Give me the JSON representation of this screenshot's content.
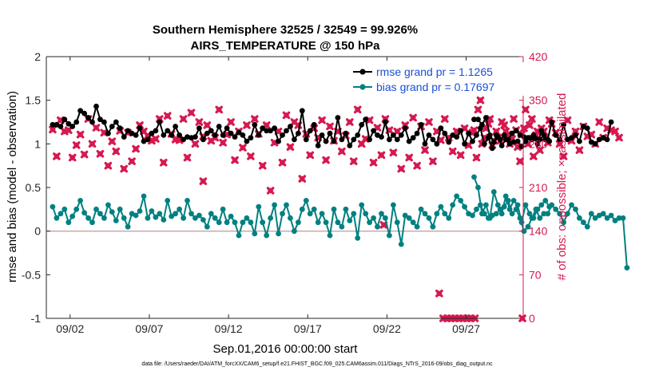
{
  "chart_data": {
    "type": "line",
    "title": "Southern Hemisphere 32525 / 32549 = 99.926%",
    "subtitle": "AIRS_TEMPERATURE @ 150 hPa",
    "xlabel": "Sep.01,2016 00:00:00 start",
    "ylabel_left": "rmse and bias (model - observation)",
    "ylabel_right": "# of obs: o=possible; ×=assimilated",
    "xlim": [
      0.5,
      30.6
    ],
    "ylim_left": [
      -1,
      2
    ],
    "ylim_right": [
      0,
      420
    ],
    "x_ticks": [
      {
        "value": 2,
        "label": "09/02"
      },
      {
        "value": 7,
        "label": "09/07"
      },
      {
        "value": 12,
        "label": "09/12"
      },
      {
        "value": 17,
        "label": "09/17"
      },
      {
        "value": 22,
        "label": "09/22"
      },
      {
        "value": 27,
        "label": "09/27"
      }
    ],
    "y_ticks_left": [
      {
        "value": 2,
        "label": "2"
      },
      {
        "value": 1.5,
        "label": "1.5"
      },
      {
        "value": 1,
        "label": "1"
      },
      {
        "value": 0.5,
        "label": "0.5"
      },
      {
        "value": 0,
        "label": "0"
      },
      {
        "value": -0.5,
        "label": "-0.5"
      },
      {
        "value": -1,
        "label": "-1"
      }
    ],
    "y_ticks_right": [
      {
        "value": 420,
        "label": "420"
      },
      {
        "value": 350,
        "label": "350"
      },
      {
        "value": 280,
        "label": "280"
      },
      {
        "value": 210,
        "label": "210"
      },
      {
        "value": 140,
        "label": "140"
      },
      {
        "value": 70,
        "label": "70"
      },
      {
        "value": 0,
        "label": "0"
      }
    ],
    "legend": [
      {
        "name": "rmse grand pr = 1.1265",
        "color": "#000000"
      },
      {
        "name": "bias grand pr = 0.17697",
        "color": "#008080"
      }
    ],
    "legend_location": "top-right",
    "zero_line": {
      "value": 0,
      "color": "#c8a0a8"
    },
    "series": [
      {
        "name": "rmse",
        "color": "#000000",
        "axis": "left",
        "marker": "circle",
        "x_start": 0.9,
        "x_step": 0.25,
        "values": [
          1.22,
          1.22,
          1.2,
          1.28,
          1.23,
          1.2,
          1.25,
          1.38,
          1.35,
          1.3,
          1.25,
          1.43,
          1.28,
          1.25,
          1.12,
          1.2,
          1.25,
          1.18,
          1.08,
          1.15,
          1.12,
          1.1,
          1.18,
          1.03,
          1.05,
          1.12,
          1.15,
          1.25,
          1.1,
          1.15,
          1.1,
          1.2,
          1.1,
          1.05,
          1.08,
          1.07,
          1.08,
          1.18,
          1.05,
          1.12,
          1.15,
          1.1,
          1.2,
          1.1,
          1.18,
          1.12,
          1.08,
          1.13,
          1.1,
          1.03,
          1.07,
          1.22,
          1.1,
          1.18,
          1.15,
          1.15,
          1.18,
          1.03,
          1.1,
          1.15,
          1.2,
          1.05,
          1.12,
          1.38,
          1.05,
          1.15,
          1.22,
          0.98,
          1.1,
          1.03,
          1.12,
          1.03,
          1.3,
          1.05,
          1.12,
          0.98,
          1.05,
          1.1,
          1.22,
          1.28,
          1.05,
          1.15,
          1.1,
          1.08,
          1.25,
          1.05,
          1.1,
          1.05,
          1.1,
          1.18,
          1.03,
          1.07,
          1.12,
          1.22,
          1.0,
          1.1,
          1.05,
          1.0,
          1.18,
          1.12,
          1.02,
          1.1,
          1.08,
          1.15,
          1.0,
          1.12,
          1.03,
          1.1,
          1.18,
          1.0,
          1.07,
          0.95,
          1.1,
          1.05,
          1.1,
          1.05,
          1.12,
          1.15,
          1.1,
          1.08,
          1.07,
          1.05,
          1.06,
          1.05,
          1.1,
          1.05,
          1.25,
          1.1,
          1.05,
          1.22,
          1.05,
          1.07,
          1.1,
          1.03,
          1.2,
          1.18,
          1.02,
          1.0,
          1.05,
          1.07,
          1.05,
          1.25
        ]
      },
      {
        "name": "rmse",
        "color": "#000000",
        "axis": "left",
        "marker": "circle",
        "x_start": 27.5,
        "x_step": 0.25,
        "values": [
          1.28,
          1.28,
          1.22,
          1.3,
          1.1,
          1.02,
          1.08,
          0.98,
          1.05,
          1.0,
          1.02,
          1.03,
          0.97,
          1.03,
          1.07,
          1.1,
          1.0,
          1.15,
          1.05,
          1.03
        ]
      },
      {
        "name": "bias",
        "color": "#008080",
        "axis": "left",
        "marker": "circle",
        "x_start": 0.9,
        "x_step": 0.25,
        "values": [
          0.28,
          0.15,
          0.2,
          0.25,
          0.1,
          0.17,
          0.25,
          0.35,
          0.21,
          0.15,
          0.1,
          0.25,
          0.2,
          0.15,
          0.3,
          0.22,
          0.12,
          0.25,
          0.15,
          0.05,
          0.2,
          0.18,
          0.23,
          0.4,
          0.15,
          0.23,
          0.16,
          0.2,
          0.13,
          0.35,
          0.17,
          0.2,
          0.25,
          0.15,
          0.35,
          0.2,
          0.15,
          0.18,
          0.13,
          0.05,
          0.2,
          0.15,
          0.1,
          0.25,
          0.1,
          0.17,
          0.1,
          -0.05,
          0.1,
          0.15,
          0.1,
          -0.03,
          0.28,
          0.1,
          -0.05,
          0.15,
          0.3,
          -0.03,
          0.2,
          0.3,
          0.15,
          0.0,
          0.1,
          0.25,
          0.35,
          0.2,
          0.25,
          0.1,
          0.2,
          0.1,
          -0.05,
          0.25,
          0.1,
          0.05,
          0.25,
          0.12,
          0.2,
          -0.08,
          0.3,
          0.2,
          0.1,
          0.15,
          0.05,
          0.2,
          0.15,
          -0.05,
          0.3,
          0.1,
          -0.15,
          0.18,
          0.15,
          0.1,
          0.05,
          0.25,
          0.2,
          0.15,
          0.05,
          0.2,
          0.28,
          0.2,
          0.15,
          0.3,
          0.4,
          0.35,
          0.28,
          0.2,
          0.18,
          0.25,
          0.3,
          0.2,
          0.15,
          0.18,
          0.2,
          0.25,
          0.28,
          0.35,
          0.2,
          0.25,
          0.15,
          0.0,
          0.05,
          0.15,
          0.25,
          0.15,
          0.2,
          0.2,
          0.3,
          0.25,
          0.2,
          0.1,
          0.2,
          0.3,
          0.25,
          0.15,
          0.1,
          0.05,
          0.2,
          0.15,
          0.18,
          0.2,
          0.15,
          0.18,
          0.12,
          0.15,
          0.15,
          -0.42
        ]
      },
      {
        "name": "bias",
        "color": "#008080",
        "axis": "left",
        "marker": "circle",
        "x_start": 27.5,
        "x_step": 0.25,
        "values": [
          0.62,
          0.5,
          0.2,
          0.3,
          0.15,
          0.45,
          0.3,
          0.2,
          0.4,
          0.25,
          0.35,
          0.3,
          0.1,
          0.3,
          0.2,
          0.15,
          0.25,
          0.3,
          0.35,
          0.28
        ]
      }
    ],
    "obs_possible": {
      "color": "#d6194f",
      "axis": "right",
      "marker": "circle",
      "x_start": 0.9,
      "x_step": 0.25,
      "values": [
        303,
        260,
        318,
        300,
        302,
        258,
        278,
        295,
        263,
        320,
        280,
        306,
        264,
        298,
        245,
        284,
        268,
        301,
        240,
        298,
        252,
        272,
        310,
        300,
        293,
        285,
        288,
        320,
        250,
        325,
        296,
        287,
        286,
        320,
        258,
        330,
        280,
        315,
        292,
        310,
        285,
        290,
        335,
        282,
        295,
        315,
        254,
        300,
        274,
        310,
        260,
        320,
        296,
        245,
        310,
        205,
        282,
        300,
        250,
        326,
        275,
        315,
        310,
        224,
        296,
        262,
        305,
        290,
        318,
        254,
        308,
        285,
        300,
        268,
        293,
        315,
        252,
        335,
        280,
        288,
        318,
        250,
        306,
        262,
        320,
        302,
        266,
        300,
        240,
        310,
        258,
        322,
        245,
        308,
        270,
        315,
        252,
        300,
        286,
        320,
        290,
        268,
        300,
        262,
        305,
        278,
        298,
        258,
        350,
        290,
        312,
        278,
        300,
        285,
        310,
        295,
        288,
        302,
        252,
        305,
        280,
        320,
        294,
        270,
        300,
        282,
        312,
        298,
        280,
        260,
        318,
        285,
        300,
        270,
        308,
        292,
        295,
        280,
        315,
        290,
        305,
        302,
        300,
        290
      ]
    },
    "obs_possible_tail": {
      "x_start": 27.5,
      "x_step": 0.25,
      "values": [
        302,
        335,
        280,
        305,
        320,
        285,
        290,
        315,
        300,
        280,
        320,
        275,
        295,
        335,
        310,
        260,
        300,
        305,
        290,
        318
      ]
    },
    "obs_assimilated_gap": {
      "x_start": 25.3,
      "x_step": 0.25,
      "values": [
        40,
        0,
        0,
        0,
        0,
        0,
        0,
        0,
        0,
        0
      ]
    },
    "obs_assimilated_extra": [
      {
        "x": 30.55,
        "value": 0
      },
      {
        "x": 21.8,
        "value": 150
      },
      {
        "x": 10.4,
        "value": 220
      }
    ]
  },
  "footer": "data file: /Users/raeder/DAI/ATM_forcXX/CAM6_setup/f.e21.FHIST_BGC.f09_025.CAM6assim.011/Diags_NTrS_2016-09/obs_diag_output.nc"
}
